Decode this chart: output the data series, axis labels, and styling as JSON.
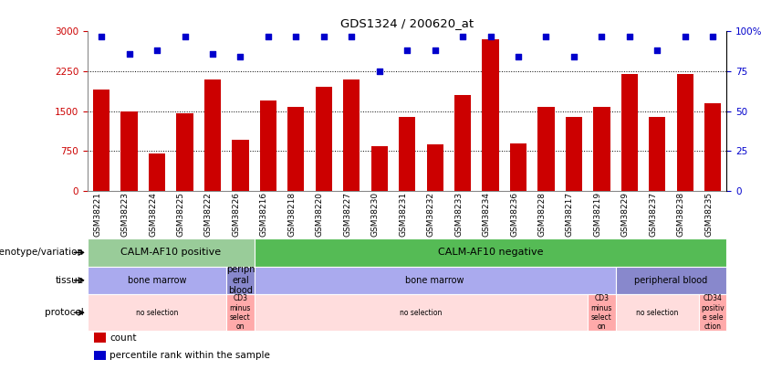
{
  "title": "GDS1324 / 200620_at",
  "samples": [
    "GSM38221",
    "GSM38223",
    "GSM38224",
    "GSM38225",
    "GSM38222",
    "GSM38226",
    "GSM38216",
    "GSM38218",
    "GSM38220",
    "GSM38227",
    "GSM38230",
    "GSM38231",
    "GSM38232",
    "GSM38233",
    "GSM38234",
    "GSM38236",
    "GSM38228",
    "GSM38217",
    "GSM38219",
    "GSM38229",
    "GSM38237",
    "GSM38238",
    "GSM38235"
  ],
  "counts": [
    1900,
    1500,
    700,
    1450,
    2100,
    950,
    1700,
    1580,
    1950,
    2100,
    830,
    1380,
    870,
    1800,
    2850,
    880,
    1580,
    1380,
    1580,
    2200,
    1380,
    2200,
    1650
  ],
  "percentile": [
    97,
    86,
    88,
    97,
    86,
    84,
    97,
    97,
    97,
    97,
    75,
    88,
    88,
    97,
    97,
    84,
    97,
    84,
    97,
    97,
    88,
    97,
    97
  ],
  "bar_color": "#cc0000",
  "dot_color": "#0000cc",
  "ylim_left": [
    0,
    3000
  ],
  "ylim_right": [
    0,
    100
  ],
  "yticks_left": [
    0,
    750,
    1500,
    2250,
    3000
  ],
  "yticks_right": [
    0,
    25,
    50,
    75,
    100
  ],
  "ytick_labels_left": [
    "0",
    "750",
    "1500",
    "2250",
    "3000"
  ],
  "ytick_labels_right": [
    "0",
    "25",
    "50",
    "75",
    "100%"
  ],
  "hlines": [
    750,
    1500,
    2250
  ],
  "genotype_row": {
    "label": "genotype/variation",
    "segments": [
      {
        "text": "CALM-AF10 positive",
        "start": 0,
        "end": 6,
        "color": "#99cc99"
      },
      {
        "text": "CALM-AF10 negative",
        "start": 6,
        "end": 23,
        "color": "#55bb55"
      }
    ]
  },
  "tissue_row": {
    "label": "tissue",
    "segments": [
      {
        "text": "bone marrow",
        "start": 0,
        "end": 5,
        "color": "#aaaaee"
      },
      {
        "text": "periph\neral\nblood",
        "start": 5,
        "end": 6,
        "color": "#8888cc"
      },
      {
        "text": "bone marrow",
        "start": 6,
        "end": 19,
        "color": "#aaaaee"
      },
      {
        "text": "peripheral blood",
        "start": 19,
        "end": 23,
        "color": "#8888cc"
      }
    ]
  },
  "protocol_row": {
    "label": "protocol",
    "segments": [
      {
        "text": "no selection",
        "start": 0,
        "end": 5,
        "color": "#ffdddd"
      },
      {
        "text": "CD3\nminus\nselect\non",
        "start": 5,
        "end": 6,
        "color": "#ffaaaa"
      },
      {
        "text": "no selection",
        "start": 6,
        "end": 18,
        "color": "#ffdddd"
      },
      {
        "text": "CD3\nminus\nselect\non",
        "start": 18,
        "end": 19,
        "color": "#ffaaaa"
      },
      {
        "text": "no selection",
        "start": 19,
        "end": 22,
        "color": "#ffdddd"
      },
      {
        "text": "CD34\npositiv\ne sele\nction",
        "start": 22,
        "end": 23,
        "color": "#ffaaaa"
      }
    ]
  },
  "legend_items": [
    {
      "color": "#cc0000",
      "label": "count"
    },
    {
      "color": "#0000cc",
      "label": "percentile rank within the sample"
    }
  ]
}
